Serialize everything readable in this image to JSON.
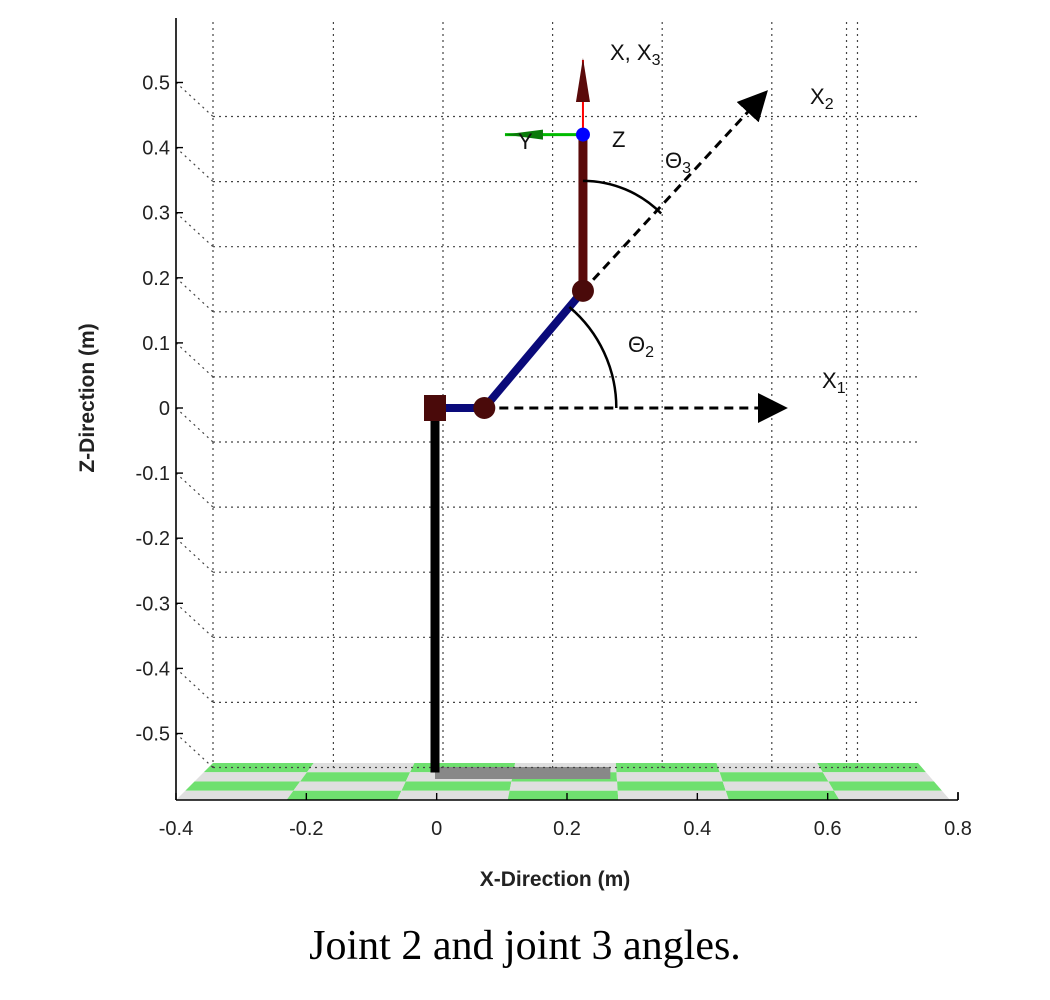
{
  "caption": "Joint 2 and joint 3 angles.",
  "colors": {
    "link_blue": "#0a0a7a",
    "link_red": "#5a0a0a",
    "joint": "#4a0a0a",
    "base_pole": "#000000",
    "floor_green": "#6fe06f",
    "floor_light": "#dfdfdf",
    "frame_x": "#ff0000",
    "frame_y": "#00bb00",
    "frame_z": "#0000ff",
    "base_shadow": "#888888"
  },
  "chart_data": {
    "type": "line",
    "xlabel": "X-Direction (m)",
    "ylabel": "Z-Direction (m)",
    "xlim": [
      -0.4,
      0.8
    ],
    "ylim": [
      -0.58,
      0.58
    ],
    "xticks": [
      "-0.4",
      "-0.2",
      "0",
      "0.2",
      "0.4",
      "0.6",
      "0.8"
    ],
    "yticks": [
      "0.5",
      "0.4",
      "0.3",
      "0.2",
      "0.1",
      "0",
      "-0.1",
      "-0.2",
      "-0.3",
      "-0.4",
      "-0.5"
    ],
    "grid": true,
    "series": [
      {
        "x": [
          0,
          0
        ],
        "y": [
          -0.56,
          0
        ]
      },
      {
        "x": [
          0,
          0.09
        ],
        "y": [
          0,
          0
        ]
      },
      {
        "x": [
          0.09,
          0.27
        ],
        "y": [
          0,
          0.18
        ]
      },
      {
        "x": [
          0.27,
          0.27
        ],
        "y": [
          0.18,
          0.42
        ]
      },
      {
        "x": [
          0.09,
          0.56
        ],
        "y": [
          0,
          0
        ]
      },
      {
        "x": [
          0.27,
          0.56
        ],
        "y": [
          0.18,
          0.46
        ]
      }
    ],
    "joints": [
      {
        "x": 0,
        "y": 0
      },
      {
        "x": 0.09,
        "y": 0
      },
      {
        "x": 0.27,
        "y": 0.18
      },
      {
        "x": 0.27,
        "y": 0.42
      }
    ],
    "annotations": {
      "x1": "X",
      "x1_sub": "1",
      "x2": "X",
      "x2_sub": "2",
      "x3": "X, X",
      "x3_sub": "3",
      "theta2": "Θ",
      "theta2_sub": "2",
      "theta3": "Θ",
      "theta3_sub": "3",
      "frame_y": "Y",
      "frame_z": "Z"
    }
  }
}
